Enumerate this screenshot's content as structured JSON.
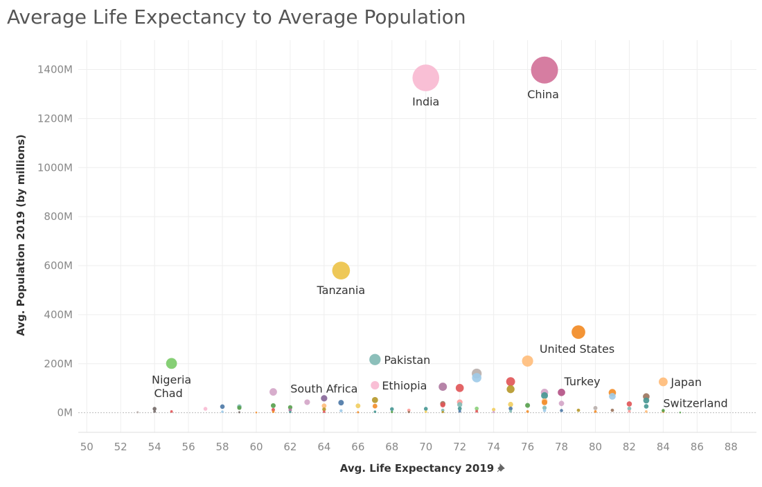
{
  "title": "Average Life Expectancy to Average Population",
  "chart_data": {
    "type": "scatter",
    "title": "Average Life Expectancy to Average Population",
    "xlabel": "Avg. Life Expectancy 2019",
    "ylabel": "Avg. Population 2019 (by millions)",
    "xlim": [
      49.5,
      89.5
    ],
    "ylim": [
      -80,
      1520
    ],
    "x_ticks": [
      50,
      52,
      54,
      56,
      58,
      60,
      62,
      64,
      66,
      68,
      70,
      72,
      74,
      76,
      78,
      80,
      82,
      84,
      86,
      88
    ],
    "y_ticks": [
      {
        "value": 0,
        "label": "0M"
      },
      {
        "value": 200,
        "label": "200M"
      },
      {
        "value": 400,
        "label": "400M"
      },
      {
        "value": 600,
        "label": "600M"
      },
      {
        "value": 800,
        "label": "800M"
      },
      {
        "value": 1000,
        "label": "1000M"
      },
      {
        "value": 1200,
        "label": "1200M"
      },
      {
        "value": 1400,
        "label": "1400M"
      }
    ],
    "grid": true,
    "legend": "none",
    "labeled_points": [
      {
        "name": "India",
        "x": 70,
        "y": 1366,
        "color": "#f9bcd3"
      },
      {
        "name": "China",
        "x": 77,
        "y": 1398,
        "color": "#d4769c"
      },
      {
        "name": "Tanzania",
        "x": 65,
        "y": 580,
        "color": "#edc54f"
      },
      {
        "name": "United States",
        "x": 79,
        "y": 329,
        "color": "#f28e2b"
      },
      {
        "name": "Nigeria",
        "x": 55,
        "y": 201,
        "color": "#7fcc6e"
      },
      {
        "name": "Pakistan",
        "x": 67,
        "y": 217,
        "color": "#86bcb6"
      },
      {
        "name": "Ethiopia",
        "x": 67,
        "y": 112,
        "color": "#f9bcd3"
      },
      {
        "name": "South Africa",
        "x": 64,
        "y": 59,
        "color": "#8b6d9c"
      },
      {
        "name": "Chad",
        "x": 54,
        "y": 16,
        "color": "#79706e"
      },
      {
        "name": "Turkey",
        "x": 78,
        "y": 83,
        "color": "#b6588a"
      },
      {
        "name": "Japan",
        "x": 84,
        "y": 126,
        "color": "#ffbe7d"
      },
      {
        "name": "Switzerland",
        "x": 84,
        "y": 9,
        "color": "#59a14f"
      }
    ],
    "other_points": [
      {
        "x": 53,
        "y": 2,
        "color": "#bab0ac"
      },
      {
        "x": 54,
        "y": 5,
        "color": "#79706e"
      },
      {
        "x": 55,
        "y": 5,
        "color": "#e15759"
      },
      {
        "x": 57,
        "y": 16,
        "color": "#f9bcd3"
      },
      {
        "x": 58,
        "y": 25,
        "color": "#4e79a7"
      },
      {
        "x": 58,
        "y": 4,
        "color": "#a0cbe8"
      },
      {
        "x": 59,
        "y": 25,
        "color": "#86bcb6"
      },
      {
        "x": 59,
        "y": 20,
        "color": "#59a14f"
      },
      {
        "x": 59,
        "y": 2,
        "color": "#79706e"
      },
      {
        "x": 60,
        "y": 1,
        "color": "#f28e2b"
      },
      {
        "x": 61,
        "y": 85,
        "color": "#d4a6c8"
      },
      {
        "x": 61,
        "y": 29,
        "color": "#59a14f"
      },
      {
        "x": 61,
        "y": 12,
        "color": "#e15759"
      },
      {
        "x": 61,
        "y": 4,
        "color": "#f28e2b"
      },
      {
        "x": 62,
        "y": 22,
        "color": "#59a14f"
      },
      {
        "x": 62,
        "y": 11,
        "color": "#b07aa1"
      },
      {
        "x": 62,
        "y": 3,
        "color": "#499894"
      },
      {
        "x": 63,
        "y": 43,
        "color": "#d4a6c8"
      },
      {
        "x": 64,
        "y": 28,
        "color": "#ffbe7d"
      },
      {
        "x": 64,
        "y": 14,
        "color": "#b6992d"
      },
      {
        "x": 64,
        "y": 4,
        "color": "#e15759"
      },
      {
        "x": 65,
        "y": 41,
        "color": "#4e79a7"
      },
      {
        "x": 65,
        "y": 8,
        "color": "#a0cbe8"
      },
      {
        "x": 66,
        "y": 28,
        "color": "#f1ce63"
      },
      {
        "x": 66,
        "y": 2,
        "color": "#f28e2b"
      },
      {
        "x": 67,
        "y": 52,
        "color": "#b6992d"
      },
      {
        "x": 67,
        "y": 27,
        "color": "#f28e2b"
      },
      {
        "x": 67,
        "y": 4,
        "color": "#499894"
      },
      {
        "x": 68,
        "y": 15,
        "color": "#499894"
      },
      {
        "x": 68,
        "y": 3,
        "color": "#59a14f"
      },
      {
        "x": 69,
        "y": 10,
        "color": "#ff9d9a"
      },
      {
        "x": 69,
        "y": 3,
        "color": "#9d7660"
      },
      {
        "x": 70,
        "y": 16,
        "color": "#499894"
      },
      {
        "x": 70,
        "y": 4,
        "color": "#f1ce63"
      },
      {
        "x": 71,
        "y": 106,
        "color": "#b07aa1"
      },
      {
        "x": 71,
        "y": 37,
        "color": "#9d7660"
      },
      {
        "x": 71,
        "y": 32,
        "color": "#e15759"
      },
      {
        "x": 71,
        "y": 10,
        "color": "#86bcb6"
      },
      {
        "x": 71,
        "y": 3,
        "color": "#b6992d"
      },
      {
        "x": 72,
        "y": 101,
        "color": "#e15759"
      },
      {
        "x": 72,
        "y": 43,
        "color": "#ff9d9a"
      },
      {
        "x": 72,
        "y": 33,
        "color": "#86bcb6"
      },
      {
        "x": 72,
        "y": 17,
        "color": "#499894"
      },
      {
        "x": 72,
        "y": 6,
        "color": "#4e79a7"
      },
      {
        "x": 73,
        "y": 160,
        "color": "#bab0ac"
      },
      {
        "x": 73,
        "y": 143,
        "color": "#a0cbe8"
      },
      {
        "x": 73,
        "y": 17,
        "color": "#8cd17d"
      },
      {
        "x": 73,
        "y": 6,
        "color": "#e15759"
      },
      {
        "x": 74,
        "y": 13,
        "color": "#f1ce63"
      },
      {
        "x": 74,
        "y": 3,
        "color": "#d4a6c8"
      },
      {
        "x": 75,
        "y": 127,
        "color": "#e15759"
      },
      {
        "x": 75,
        "y": 96,
        "color": "#b6992d"
      },
      {
        "x": 75,
        "y": 34,
        "color": "#f1ce63"
      },
      {
        "x": 75,
        "y": 17,
        "color": "#4e79a7"
      },
      {
        "x": 75,
        "y": 6,
        "color": "#86bcb6"
      },
      {
        "x": 76,
        "y": 211,
        "color": "#ffbe7d"
      },
      {
        "x": 76,
        "y": 30,
        "color": "#59a14f"
      },
      {
        "x": 76,
        "y": 5,
        "color": "#f28e2b"
      },
      {
        "x": 77,
        "y": 83,
        "color": "#d4a6c8"
      },
      {
        "x": 77,
        "y": 70,
        "color": "#499894"
      },
      {
        "x": 77,
        "y": 47,
        "color": "#ffbe7d"
      },
      {
        "x": 77,
        "y": 42,
        "color": "#f28e2b"
      },
      {
        "x": 77,
        "y": 20,
        "color": "#86bcb6"
      },
      {
        "x": 77,
        "y": 9,
        "color": "#a0cbe8"
      },
      {
        "x": 78,
        "y": 38,
        "color": "#d4a6c8"
      },
      {
        "x": 78,
        "y": 9,
        "color": "#4e79a7"
      },
      {
        "x": 79,
        "y": 10,
        "color": "#b6992d"
      },
      {
        "x": 80,
        "y": 19,
        "color": "#bab0ac"
      },
      {
        "x": 80,
        "y": 5,
        "color": "#f28e2b"
      },
      {
        "x": 81,
        "y": 82,
        "color": "#f28e2b"
      },
      {
        "x": 81,
        "y": 67,
        "color": "#a0cbe8"
      },
      {
        "x": 81,
        "y": 10,
        "color": "#9d7660"
      },
      {
        "x": 82,
        "y": 36,
        "color": "#e15759"
      },
      {
        "x": 82,
        "y": 17,
        "color": "#86bcb6"
      },
      {
        "x": 82,
        "y": 6,
        "color": "#ff9d9a"
      },
      {
        "x": 83,
        "y": 66,
        "color": "#9d7660"
      },
      {
        "x": 83,
        "y": 50,
        "color": "#499894"
      },
      {
        "x": 83,
        "y": 26,
        "color": "#499894"
      },
      {
        "x": 83,
        "y": 5,
        "color": "#ffbe7d"
      },
      {
        "x": 84,
        "y": 5,
        "color": "#f28e2b"
      },
      {
        "x": 85,
        "y": 1,
        "color": "#59a14f"
      }
    ]
  }
}
